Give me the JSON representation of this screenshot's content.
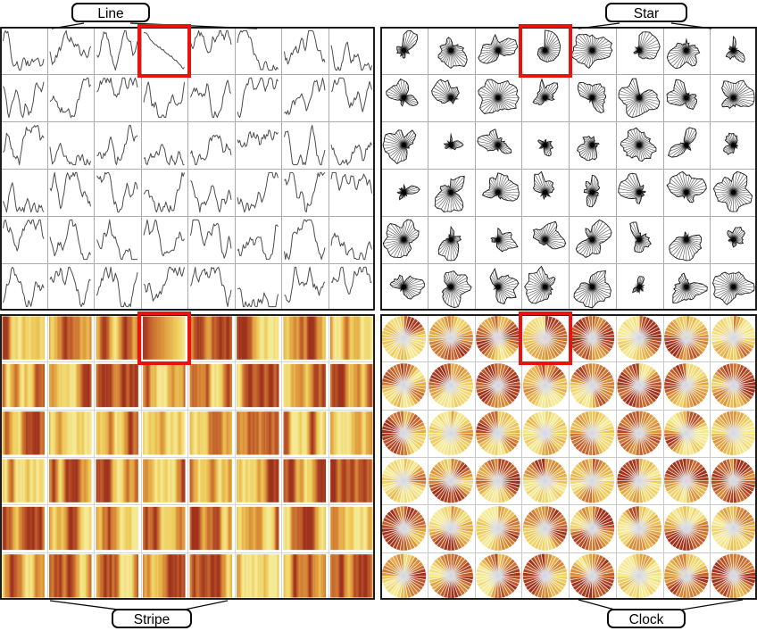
{
  "figure": {
    "description": "Comparison of four glyph encodings showing the same 6x8 grid of time series; the same selected series is outlined in red in every panel",
    "highlight_color": "#e8120e"
  },
  "chart_data": {
    "type": "small-multiples",
    "layout": {
      "rows": 6,
      "cols": 8,
      "points_per_series": 36,
      "grid_on": true,
      "legend": "none",
      "axes": "none"
    },
    "highlighted_cell": {
      "row": 0,
      "col": 3
    },
    "panels": [
      {
        "id": "line",
        "label": "Line",
        "position": "top-left",
        "glyph": "line-chart",
        "encoding": "x=time, y=value"
      },
      {
        "id": "star",
        "label": "Star",
        "position": "top-right",
        "glyph": "star-glyph",
        "encoding": "angle=time clockwise from 12, radius=value"
      },
      {
        "id": "stripe",
        "label": "Stripe",
        "position": "bottom-left",
        "glyph": "colour-stripes",
        "encoding": "x=time, colour=value"
      },
      {
        "id": "clock",
        "label": "Clock",
        "position": "bottom-right",
        "glyph": "colour-pie",
        "encoding": "angle=time clockwise from 12, colour=value"
      }
    ],
    "colormap": {
      "name": "yellow-orange-red",
      "stops": [
        [
          0.0,
          "#f5ee9e"
        ],
        [
          0.25,
          "#efcd5d"
        ],
        [
          0.5,
          "#de983c"
        ],
        [
          0.75,
          "#c15e2c"
        ],
        [
          1.0,
          "#982a1a"
        ]
      ],
      "low_means": "low value",
      "high_means": "high value"
    },
    "colors": {
      "line_stroke": "#4d4d4d",
      "star_outline": "#1c1c1c",
      "star_spokes": "#565656",
      "grid_line": "#ababab",
      "grid_light": "#c9c9c9",
      "panel_border": "#1b1b1b",
      "clock_center": "#d0d4de"
    },
    "highlighted_series": [
      0.92,
      0.91,
      0.91,
      0.88,
      0.84,
      0.78,
      0.74,
      0.72,
      0.68,
      0.66,
      0.63,
      0.63,
      0.59,
      0.57,
      0.58,
      0.53,
      0.51,
      0.52,
      0.47,
      0.45,
      0.42,
      0.42,
      0.38,
      0.36,
      0.37,
      0.32,
      0.29,
      0.27,
      0.27,
      0.23,
      0.2,
      0.17,
      0.15,
      0.1,
      0.07,
      0.11
    ],
    "series_seed": 11
  }
}
